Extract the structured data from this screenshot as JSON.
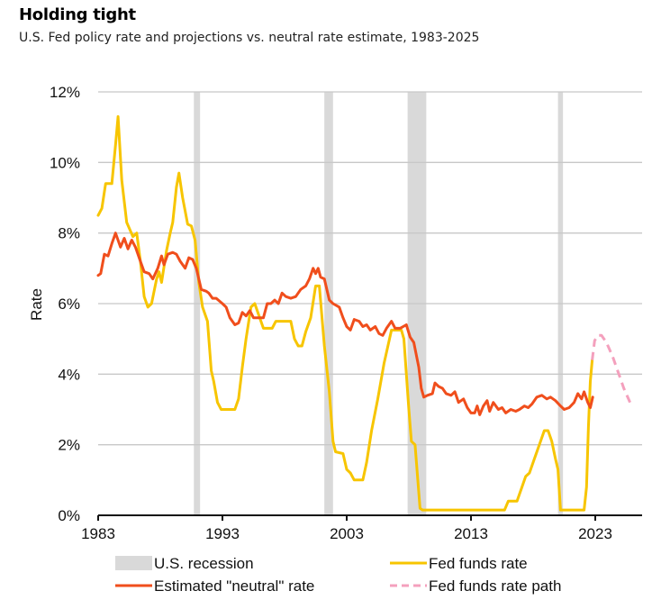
{
  "header": {
    "title": "Holding tight",
    "subtitle": "U.S. Fed policy rate and projections vs. neutral rate estimate, 1983-2025"
  },
  "chart_data": {
    "type": "line",
    "title": "Holding tight",
    "subtitle": "U.S. Fed policy rate and projections vs. neutral rate estimate, 1983-2025",
    "xlabel": "",
    "ylabel": "Rate",
    "xlim": [
      1983,
      2026.2
    ],
    "ylim": [
      0,
      12
    ],
    "x_ticks": [
      1983,
      1993,
      2003,
      2013,
      2023
    ],
    "x_tick_labels": [
      "1983",
      "1993",
      "2003",
      "2013",
      "2023"
    ],
    "y_ticks": [
      0,
      2,
      4,
      6,
      8,
      10,
      12
    ],
    "y_tick_labels": [
      "0%",
      "2%",
      "4%",
      "6%",
      "8%",
      "10%",
      "12%"
    ],
    "grid": "horizontal",
    "legend_placement": "bottom",
    "colors": {
      "recession": "#d9d9d9",
      "fed_funds": "#f7c500",
      "neutral": "#f04e1c",
      "path": "#f4a0bd",
      "grid": "#c8c8c8",
      "axis": "#111111"
    },
    "recessions": [
      {
        "start": 1990.7,
        "end": 1991.2
      },
      {
        "start": 2001.2,
        "end": 2001.9
      },
      {
        "start": 2007.9,
        "end": 2009.4
      },
      {
        "start": 2020.0,
        "end": 2020.4
      }
    ],
    "legend": [
      {
        "key": "recession",
        "label": "U.S. recession",
        "style": "box"
      },
      {
        "key": "fed_funds",
        "label": "Fed funds rate",
        "style": "line"
      },
      {
        "key": "neutral",
        "label": "Estimated \"neutral\" rate",
        "style": "line"
      },
      {
        "key": "path",
        "label": "Fed funds rate path",
        "style": "dashed"
      }
    ],
    "series": [
      {
        "key": "fed_funds",
        "name": "Fed funds rate",
        "x": [
          1983.0,
          1983.3,
          1983.6,
          1984.1,
          1984.4,
          1984.6,
          1984.9,
          1985.3,
          1985.8,
          1986.1,
          1986.4,
          1986.7,
          1987.0,
          1987.3,
          1987.7,
          1987.9,
          1988.1,
          1988.5,
          1988.8,
          1989.0,
          1989.3,
          1989.5,
          1989.8,
          1990.2,
          1990.5,
          1990.8,
          1991.1,
          1991.4,
          1991.8,
          1992.1,
          1992.3,
          1992.6,
          1992.9,
          1993.5,
          1994.0,
          1994.3,
          1994.6,
          1994.9,
          1995.3,
          1995.6,
          1995.9,
          1996.3,
          1997.0,
          1997.3,
          1998.5,
          1998.8,
          1999.1,
          1999.4,
          1999.7,
          2000.1,
          2000.5,
          2000.8,
          2001.2,
          2001.6,
          2001.9,
          2002.1,
          2002.7,
          2003.0,
          2003.3,
          2003.6,
          2004.3,
          2004.6,
          2005.0,
          2005.5,
          2006.0,
          2006.6,
          2007.4,
          2007.6,
          2008.0,
          2008.2,
          2008.5,
          2008.9,
          2009.1,
          2015.7,
          2016.0,
          2016.7,
          2017.0,
          2017.4,
          2017.7,
          2018.1,
          2018.6,
          2018.9,
          2019.2,
          2019.5,
          2019.8,
          2020.0,
          2020.2,
          2022.1,
          2022.3,
          2022.45,
          2022.6,
          2022.75
        ],
        "values": [
          8.5,
          8.7,
          9.4,
          9.4,
          10.5,
          11.3,
          9.5,
          8.3,
          7.9,
          8.0,
          7.2,
          6.2,
          5.9,
          6.0,
          6.7,
          6.9,
          6.6,
          7.5,
          8.0,
          8.3,
          9.3,
          9.7,
          9.0,
          8.25,
          8.2,
          7.8,
          6.6,
          5.9,
          5.5,
          4.1,
          3.8,
          3.2,
          3.0,
          3.0,
          3.0,
          3.3,
          4.2,
          5.0,
          5.9,
          6.0,
          5.7,
          5.3,
          5.3,
          5.5,
          5.5,
          5.0,
          4.8,
          4.8,
          5.2,
          5.6,
          6.5,
          6.5,
          4.8,
          3.5,
          2.1,
          1.8,
          1.75,
          1.3,
          1.2,
          1.0,
          1.0,
          1.5,
          2.4,
          3.3,
          4.3,
          5.25,
          5.25,
          5.0,
          3.0,
          2.1,
          2.0,
          0.2,
          0.15,
          0.15,
          0.4,
          0.4,
          0.7,
          1.1,
          1.2,
          1.6,
          2.1,
          2.4,
          2.4,
          2.1,
          1.6,
          1.3,
          0.15,
          0.15,
          0.8,
          2.5,
          3.8,
          4.4
        ]
      },
      {
        "key": "neutral",
        "name": "Estimated \"neutral\" rate",
        "x": [
          1983.0,
          1983.2,
          1983.5,
          1983.8,
          1984.1,
          1984.4,
          1984.8,
          1985.1,
          1985.4,
          1985.7,
          1986.0,
          1986.4,
          1986.7,
          1987.1,
          1987.4,
          1987.8,
          1988.1,
          1988.3,
          1988.6,
          1989.0,
          1989.3,
          1989.6,
          1990.0,
          1990.3,
          1990.6,
          1990.9,
          1991.3,
          1991.7,
          1991.9,
          1992.2,
          1992.5,
          1993.0,
          1993.3,
          1993.6,
          1994.0,
          1994.3,
          1994.6,
          1994.9,
          1995.2,
          1995.5,
          1995.9,
          1996.3,
          1996.6,
          1996.9,
          1997.2,
          1997.5,
          1997.8,
          1998.1,
          1998.5,
          1998.9,
          1999.3,
          1999.7,
          2000.0,
          2000.3,
          2000.5,
          2000.7,
          2000.9,
          2001.2,
          2001.6,
          2001.9,
          2002.4,
          2002.7,
          2003.0,
          2003.3,
          2003.6,
          2004.0,
          2004.3,
          2004.6,
          2004.9,
          2005.3,
          2005.6,
          2005.9,
          2006.2,
          2006.6,
          2006.9,
          2007.3,
          2007.8,
          2008.1,
          2008.4,
          2008.8,
          2009.0,
          2009.2,
          2009.5,
          2009.9,
          2010.1,
          2010.4,
          2010.7,
          2011.0,
          2011.4,
          2011.7,
          2012.0,
          2012.4,
          2012.7,
          2013.0,
          2013.3,
          2013.5,
          2013.7,
          2014.0,
          2014.3,
          2014.5,
          2014.8,
          2015.2,
          2015.5,
          2015.8,
          2016.2,
          2016.6,
          2016.9,
          2017.3,
          2017.6,
          2017.9,
          2018.3,
          2018.7,
          2019.1,
          2019.4,
          2019.8,
          2020.2,
          2020.5,
          2020.9,
          2021.3,
          2021.6,
          2021.9,
          2022.1,
          2022.4,
          2022.6,
          2022.8
        ],
        "values": [
          6.8,
          6.85,
          7.4,
          7.35,
          7.7,
          8.0,
          7.6,
          7.85,
          7.55,
          7.8,
          7.6,
          7.2,
          6.9,
          6.85,
          6.7,
          7.0,
          7.35,
          7.1,
          7.4,
          7.45,
          7.4,
          7.2,
          7.0,
          7.3,
          7.25,
          7.0,
          6.4,
          6.35,
          6.3,
          6.15,
          6.15,
          6.0,
          5.9,
          5.6,
          5.4,
          5.45,
          5.75,
          5.65,
          5.8,
          5.6,
          5.6,
          5.6,
          6.0,
          6.0,
          6.1,
          6.0,
          6.3,
          6.2,
          6.15,
          6.2,
          6.4,
          6.5,
          6.7,
          7.0,
          6.85,
          7.0,
          6.75,
          6.7,
          6.1,
          6.0,
          5.9,
          5.6,
          5.35,
          5.25,
          5.55,
          5.5,
          5.35,
          5.4,
          5.25,
          5.35,
          5.15,
          5.1,
          5.3,
          5.5,
          5.3,
          5.3,
          5.4,
          5.05,
          4.9,
          4.2,
          3.6,
          3.35,
          3.4,
          3.45,
          3.75,
          3.65,
          3.6,
          3.45,
          3.4,
          3.5,
          3.2,
          3.3,
          3.05,
          2.9,
          2.9,
          3.1,
          2.85,
          3.1,
          3.25,
          2.95,
          3.2,
          3.0,
          3.05,
          2.9,
          3.0,
          2.95,
          3.0,
          3.1,
          3.05,
          3.15,
          3.35,
          3.4,
          3.3,
          3.35,
          3.25,
          3.1,
          3.0,
          3.05,
          3.2,
          3.45,
          3.3,
          3.5,
          3.2,
          3.05,
          3.35
        ]
      },
      {
        "key": "path",
        "name": "Fed funds rate path",
        "x": [
          2022.75,
          2022.95,
          2023.2,
          2023.5,
          2023.9,
          2024.4,
          2024.9,
          2025.3,
          2025.8
        ],
        "values": [
          4.4,
          4.95,
          5.1,
          5.1,
          4.9,
          4.5,
          4.0,
          3.6,
          3.2
        ]
      }
    ]
  }
}
